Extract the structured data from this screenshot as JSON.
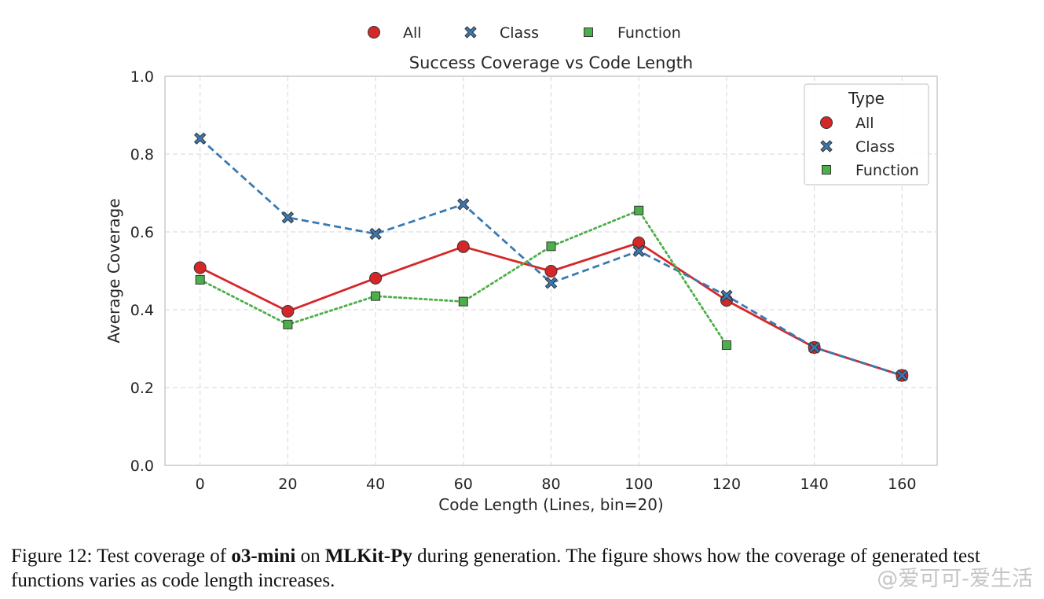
{
  "chart_data": {
    "type": "line",
    "title": "Success Coverage vs Code Length",
    "xlabel": "Code Length (Lines, bin=20)",
    "ylabel": "Average Coverage",
    "xlim": [
      -8,
      168
    ],
    "ylim": [
      0.0,
      1.0
    ],
    "xticks": [
      "0",
      "20",
      "40",
      "60",
      "80",
      "100",
      "120",
      "140",
      "160"
    ],
    "yticks": [
      "0.0",
      "0.2",
      "0.4",
      "0.6",
      "0.8",
      "1.0"
    ],
    "grid": true,
    "legend_title": "Type",
    "legend_position": "top-right",
    "series": [
      {
        "name": "All",
        "color": "#d62728",
        "marker": "circle",
        "line_style": "solid",
        "x": [
          0,
          20,
          40,
          60,
          80,
          100,
          120,
          140,
          160
        ],
        "y": [
          0.508,
          0.396,
          0.481,
          0.562,
          0.499,
          0.572,
          0.424,
          0.303,
          0.231
        ]
      },
      {
        "name": "Class",
        "color": "#3a7ab3",
        "marker": "x",
        "line_style": "dashed",
        "x": [
          0,
          20,
          40,
          60,
          80,
          100,
          120,
          140,
          160
        ],
        "y": [
          0.84,
          0.637,
          0.595,
          0.671,
          0.469,
          0.551,
          0.436,
          0.303,
          0.231
        ]
      },
      {
        "name": "Function",
        "color": "#4daf4a",
        "marker": "square",
        "line_style": "dotted",
        "x": [
          0,
          20,
          40,
          60,
          80,
          100,
          120
        ],
        "y": [
          0.477,
          0.362,
          0.435,
          0.421,
          0.563,
          0.655,
          0.309
        ]
      }
    ]
  },
  "caption": {
    "prefix": "Figure 12: Test coverage of ",
    "model": "o3-mini",
    "middle": " on ",
    "dataset": "MLKit-Py",
    "suffix": " during generation. The figure shows how the coverage of generated test functions varies as code length increases."
  },
  "watermark": "@爱可可-爱生活"
}
